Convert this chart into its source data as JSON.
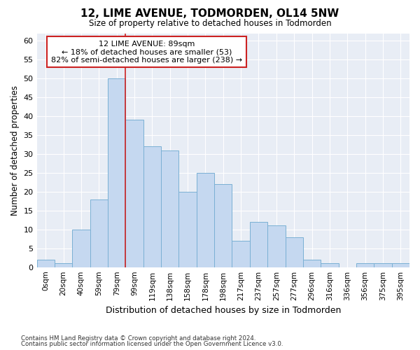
{
  "title": "12, LIME AVENUE, TODMORDEN, OL14 5NW",
  "subtitle": "Size of property relative to detached houses in Todmorden",
  "xlabel": "Distribution of detached houses by size in Todmorden",
  "ylabel": "Number of detached properties",
  "bar_color": "#c5d8f0",
  "bar_edge_color": "#7ab0d4",
  "background_color": "#e8edf5",
  "grid_color": "#ffffff",
  "fig_bg_color": "#ffffff",
  "categories": [
    "0sqm",
    "20sqm",
    "40sqm",
    "59sqm",
    "79sqm",
    "99sqm",
    "119sqm",
    "138sqm",
    "158sqm",
    "178sqm",
    "198sqm",
    "217sqm",
    "237sqm",
    "257sqm",
    "277sqm",
    "296sqm",
    "316sqm",
    "336sqm",
    "356sqm",
    "375sqm",
    "395sqm"
  ],
  "values": [
    2,
    1,
    10,
    18,
    50,
    39,
    32,
    31,
    20,
    25,
    22,
    7,
    12,
    11,
    8,
    2,
    1,
    0,
    1,
    1,
    1
  ],
  "ylim": [
    0,
    62
  ],
  "yticks": [
    0,
    5,
    10,
    15,
    20,
    25,
    30,
    35,
    40,
    45,
    50,
    55,
    60
  ],
  "property_sqm": 89,
  "property_bin_index": 4,
  "red_line_color": "#cc2222",
  "annotation_title": "12 LIME AVENUE: 89sqm",
  "annotation_line1": "← 18% of detached houses are smaller (53)",
  "annotation_line2": "82% of semi-detached houses are larger (238) →",
  "annotation_box_facecolor": "#ffffff",
  "annotation_box_edgecolor": "#cc2222",
  "footer1": "Contains HM Land Registry data © Crown copyright and database right 2024.",
  "footer2": "Contains public sector information licensed under the Open Government Licence v3.0."
}
